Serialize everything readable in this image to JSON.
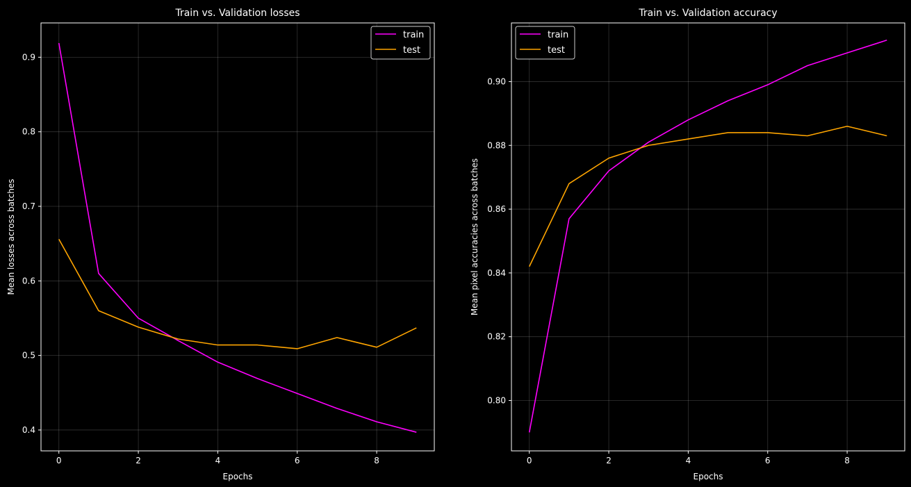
{
  "colors": {
    "background": "#000000",
    "axis": "#ffffff",
    "grid": "#ffffff",
    "train": "#ff00ff",
    "test": "#ffa500"
  },
  "chart_data": [
    {
      "type": "line",
      "title": "Train vs. Validation losses",
      "xlabel": "Epochs",
      "ylabel": "Mean losses across batches",
      "xlim": [
        -0.45,
        9.45
      ],
      "ylim": [
        0.372,
        0.946
      ],
      "x_ticks": [
        0,
        2,
        4,
        6,
        8
      ],
      "x_tick_labels": [
        "0",
        "2",
        "4",
        "6",
        "8"
      ],
      "y_ticks": [
        0.4,
        0.5,
        0.6,
        0.7,
        0.8,
        0.9
      ],
      "y_tick_labels": [
        "0.4",
        "0.5",
        "0.6",
        "0.7",
        "0.8",
        "0.9"
      ],
      "grid": true,
      "legend_position": "top-right",
      "x": [
        0,
        1,
        2,
        3,
        4,
        5,
        6,
        7,
        8,
        9
      ],
      "series": [
        {
          "name": "train",
          "color_key": "train",
          "values": [
            0.919,
            0.61,
            0.55,
            0.52,
            0.491,
            0.469,
            0.449,
            0.429,
            0.411,
            0.397
          ]
        },
        {
          "name": "test",
          "color_key": "test",
          "values": [
            0.656,
            0.56,
            0.538,
            0.522,
            0.514,
            0.514,
            0.509,
            0.524,
            0.511,
            0.537
          ]
        }
      ]
    },
    {
      "type": "line",
      "title": "Train vs. Validation accuracy",
      "xlabel": "Epochs",
      "ylabel": "Mean pixel accuracies across batches",
      "xlim": [
        -0.45,
        9.45
      ],
      "ylim": [
        0.7842,
        0.9184
      ],
      "x_ticks": [
        0,
        2,
        4,
        6,
        8
      ],
      "x_tick_labels": [
        "0",
        "2",
        "4",
        "6",
        "8"
      ],
      "y_ticks": [
        0.8,
        0.82,
        0.84,
        0.86,
        0.88,
        0.9
      ],
      "y_tick_labels": [
        "0.80",
        "0.82",
        "0.84",
        "0.86",
        "0.88",
        "0.90"
      ],
      "grid": true,
      "legend_position": "top-left",
      "x": [
        0,
        1,
        2,
        3,
        4,
        5,
        6,
        7,
        8,
        9
      ],
      "series": [
        {
          "name": "train",
          "color_key": "train",
          "values": [
            0.79,
            0.857,
            0.872,
            0.881,
            0.888,
            0.894,
            0.899,
            0.905,
            0.909,
            0.913
          ]
        },
        {
          "name": "test",
          "color_key": "test",
          "values": [
            0.842,
            0.868,
            0.876,
            0.88,
            0.882,
            0.884,
            0.884,
            0.883,
            0.886,
            0.883
          ]
        }
      ]
    }
  ]
}
